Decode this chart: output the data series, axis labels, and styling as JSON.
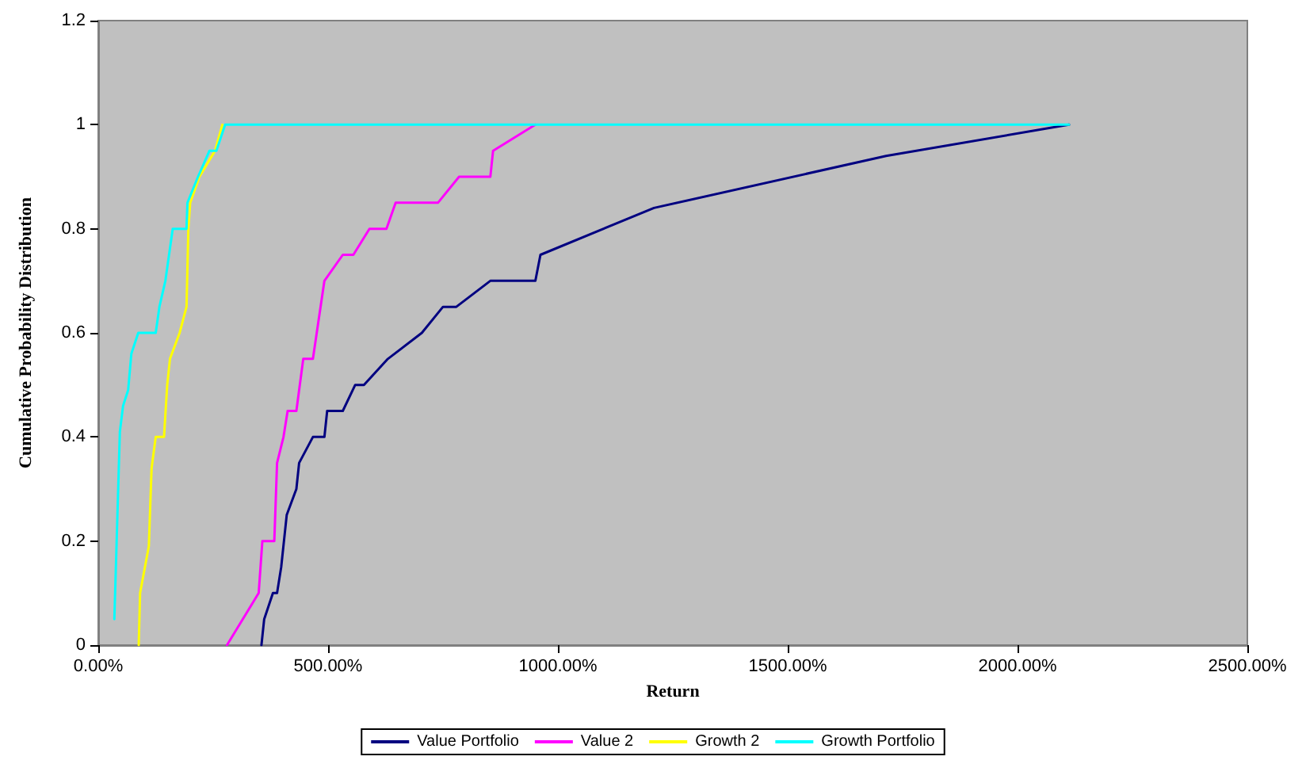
{
  "chart_data": {
    "type": "line",
    "xlabel": "Return",
    "ylabel": "Cumulative Probability Distribution",
    "xlim": [
      0,
      2500
    ],
    "xticks": [
      {
        "value": 0,
        "label": "0.00%"
      },
      {
        "value": 500,
        "label": "500.00%"
      },
      {
        "value": 1000,
        "label": "1000.00%"
      },
      {
        "value": 1500,
        "label": "1500.00%"
      },
      {
        "value": 2000,
        "label": "2000.00%"
      },
      {
        "value": 2500,
        "label": "2500.00%"
      }
    ],
    "ylim": [
      0,
      1.2
    ],
    "yticks": [
      0,
      0.2,
      0.4,
      0.6,
      0.8,
      1,
      1.2
    ],
    "grid": false,
    "legend": "bottom",
    "marker": "none",
    "line_style": "solid",
    "series": [
      {
        "name": "Value Portfolio",
        "color": "#000080",
        "x": [
          355,
          361,
          380,
          389,
          398,
          410,
          431,
          437,
          467,
          492,
          498,
          532,
          559,
          578,
          630,
          704,
          750,
          779,
          853,
          951,
          962,
          1209,
          1714,
          2112
        ],
        "values": [
          0,
          0.05,
          0.1,
          0.1,
          0.15,
          0.25,
          0.3,
          0.35,
          0.4,
          0.4,
          0.45,
          0.45,
          0.5,
          0.5,
          0.55,
          0.6,
          0.65,
          0.65,
          0.7,
          0.7,
          0.75,
          0.84,
          0.94,
          1
        ]
      },
      {
        "name": "Value 2",
        "color": "#ff00ff",
        "x": [
          280,
          349,
          357,
          383,
          389,
          403,
          412,
          431,
          446,
          467,
          492,
          532,
          555,
          590,
          627,
          647,
          739,
          785,
          842,
          853,
          859,
          951
        ],
        "values": [
          0,
          0.1,
          0.2,
          0.2,
          0.35,
          0.4,
          0.45,
          0.45,
          0.55,
          0.55,
          0.7,
          0.75,
          0.75,
          0.8,
          0.8,
          0.85,
          0.85,
          0.9,
          0.9,
          0.9,
          0.95,
          1
        ]
      },
      {
        "name": "Growth 2",
        "color": "#ffff00",
        "x": [
          88,
          91,
          110,
          116,
          125,
          143,
          150,
          156,
          177,
          192,
          196,
          200,
          220,
          254,
          270
        ],
        "values": [
          0,
          0.1,
          0.19,
          0.34,
          0.4,
          0.4,
          0.5,
          0.55,
          0.6,
          0.65,
          0.8,
          0.85,
          0.9,
          0.95,
          1
        ]
      },
      {
        "name": "Growth Portfolio",
        "color": "#00ffff",
        "x": [
          35,
          47,
          54,
          65,
          72,
          87,
          125,
          133,
          146,
          154,
          162,
          192,
          194,
          217,
          242,
          257,
          276,
          2112
        ],
        "values": [
          0.05,
          0.41,
          0.46,
          0.49,
          0.56,
          0.6,
          0.6,
          0.65,
          0.7,
          0.75,
          0.8,
          0.8,
          0.85,
          0.9,
          0.95,
          0.95,
          1,
          1
        ]
      }
    ]
  }
}
